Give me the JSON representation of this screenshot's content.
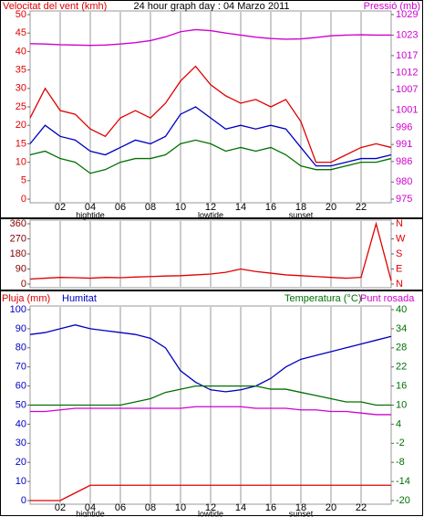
{
  "chart_data": [
    {
      "type": "line",
      "title": "24 hour graph day : 04 Marzo 2011",
      "ylabel": "Velocitat del vent (kmh)",
      "y2label": "Pressió (mb)",
      "ylabel_color": "#e00000",
      "y2label_color": "#d000d0",
      "x": [
        0,
        1,
        2,
        3,
        4,
        5,
        6,
        7,
        8,
        9,
        10,
        11,
        12,
        13,
        14,
        15,
        16,
        17,
        18,
        19,
        20,
        21,
        22,
        23,
        24
      ],
      "xlim": [
        0,
        24
      ],
      "xticks": [
        {
          "value": 2,
          "label": "02"
        },
        {
          "value": 4,
          "label": "04"
        },
        {
          "value": 6,
          "label": "06"
        },
        {
          "value": 8,
          "label": "08"
        },
        {
          "value": 10,
          "label": "10"
        },
        {
          "value": 12,
          "label": "12"
        },
        {
          "value": 14,
          "label": "14"
        },
        {
          "value": 16,
          "label": "16"
        },
        {
          "value": 18,
          "label": "18"
        },
        {
          "value": 20,
          "label": "20"
        },
        {
          "value": 22,
          "label": "22"
        }
      ],
      "annotations": [
        {
          "text": "hightide",
          "x": 4
        },
        {
          "text": "lowtide",
          "x": 12
        },
        {
          "text": "sunset",
          "x": 18
        }
      ],
      "ylim": [
        0,
        50
      ],
      "yticks": [
        0,
        5,
        10,
        15,
        20,
        25,
        30,
        35,
        40,
        45,
        50
      ],
      "ytick_color": "#e00000",
      "y2lim": [
        975,
        1029
      ],
      "y2ticks": [
        975,
        980,
        986,
        991,
        996,
        1001,
        1007,
        1012,
        1017,
        1023,
        1029
      ],
      "y2tick_color": "#d000d0",
      "grid": true,
      "series": [
        {
          "color": "#e00000",
          "values": [
            22,
            30,
            24,
            23,
            19,
            17,
            22,
            24,
            22,
            26,
            32,
            36,
            31,
            28,
            26,
            27,
            25,
            27,
            21,
            10,
            10,
            12,
            14,
            15,
            14
          ]
        },
        {
          "color": "#007000",
          "values": [
            12,
            13,
            11,
            10,
            7,
            8,
            10,
            11,
            11,
            12,
            15,
            16,
            15,
            13,
            14,
            13,
            14,
            12,
            9,
            8,
            8,
            9,
            10,
            10,
            11
          ]
        },
        {
          "color": "#0000c0",
          "values": [
            15,
            20,
            17,
            16,
            13,
            12,
            14,
            16,
            15,
            17,
            23,
            25,
            22,
            19,
            20,
            19,
            20,
            19,
            14,
            9,
            9,
            10,
            11,
            11,
            12
          ]
        },
        {
          "color": "#d000d0",
          "axis": "y2",
          "values": [
            1020.5,
            1020.4,
            1020.2,
            1020.1,
            1020.0,
            1020.1,
            1020.4,
            1020.8,
            1021.4,
            1022.5,
            1024.0,
            1024.6,
            1024.3,
            1023.6,
            1023.0,
            1022.4,
            1022.0,
            1021.8,
            1021.9,
            1022.3,
            1022.8,
            1023.0,
            1023.1,
            1023.0,
            1023.0
          ]
        }
      ]
    },
    {
      "type": "line",
      "x": [
        0,
        1,
        2,
        3,
        4,
        5,
        6,
        7,
        8,
        9,
        10,
        11,
        12,
        13,
        14,
        15,
        16,
        17,
        18,
        19,
        20,
        21,
        22,
        23,
        24
      ],
      "xlim": [
        0,
        24
      ],
      "ylim": [
        0,
        360
      ],
      "yticks": [
        0,
        90,
        180,
        270,
        360
      ],
      "ytick_color": "#800000",
      "y2lim": [
        0,
        360
      ],
      "y2ticks": [
        {
          "value": 0,
          "label": "N"
        },
        {
          "value": 90,
          "label": "E"
        },
        {
          "value": 180,
          "label": "S"
        },
        {
          "value": 270,
          "label": "W"
        },
        {
          "value": 360,
          "label": "N"
        }
      ],
      "y2tick_color": "#e00000",
      "grid": true,
      "series": [
        {
          "color": "#e00000",
          "values": [
            30,
            35,
            40,
            38,
            35,
            40,
            38,
            42,
            45,
            48,
            50,
            55,
            60,
            70,
            90,
            75,
            65,
            55,
            50,
            45,
            40,
            35,
            40,
            360,
            20
          ]
        }
      ]
    },
    {
      "type": "line",
      "x": [
        0,
        1,
        2,
        3,
        4,
        5,
        6,
        7,
        8,
        9,
        10,
        11,
        12,
        13,
        14,
        15,
        16,
        17,
        18,
        19,
        20,
        21,
        22,
        23,
        24
      ],
      "xlim": [
        0,
        24
      ],
      "xticks": [
        {
          "value": 2,
          "label": "02"
        },
        {
          "value": 4,
          "label": "04"
        },
        {
          "value": 6,
          "label": "06"
        },
        {
          "value": 8,
          "label": "08"
        },
        {
          "value": 10,
          "label": "10"
        },
        {
          "value": 12,
          "label": "12"
        },
        {
          "value": 14,
          "label": "14"
        },
        {
          "value": 16,
          "label": "16"
        },
        {
          "value": 18,
          "label": "18"
        },
        {
          "value": 20,
          "label": "20"
        },
        {
          "value": 22,
          "label": "22"
        }
      ],
      "annotations": [
        {
          "text": "hightide",
          "x": 4
        },
        {
          "text": "lowtide",
          "x": 12
        },
        {
          "text": "sunset",
          "x": 18
        }
      ],
      "ylim": [
        0,
        100
      ],
      "yticks": [
        0,
        10,
        20,
        30,
        40,
        50,
        60,
        70,
        80,
        90,
        100
      ],
      "ytick_color": "#0000c0",
      "y2lim": [
        -20,
        40
      ],
      "y2ticks": [
        -20,
        -14,
        -8,
        -2,
        4,
        10,
        16,
        22,
        28,
        34,
        40
      ],
      "y2tick_color": "#007000",
      "y3lim": [
        0,
        10
      ],
      "grid": true,
      "series": [
        {
          "name": "Pluja (mm)",
          "color": "#e00000",
          "axis": "y3",
          "values": [
            0,
            0,
            0,
            0.4,
            0.8,
            0.8,
            0.8,
            0.8,
            0.8,
            0.8,
            0.8,
            0.8,
            0.8,
            0.8,
            0.8,
            0.8,
            0.8,
            0.8,
            0.8,
            0.8,
            0.8,
            0.8,
            0.8,
            0.8,
            0.8
          ]
        },
        {
          "name": "Humitat",
          "color": "#0000c0",
          "values": [
            87,
            88,
            90,
            92,
            90,
            89,
            88,
            87,
            85,
            80,
            68,
            62,
            58,
            57,
            58,
            60,
            64,
            70,
            74,
            76,
            78,
            80,
            82,
            84,
            86
          ]
        },
        {
          "name": "Temperatura (°C)",
          "color": "#007000",
          "axis": "y2",
          "values": [
            10,
            10,
            10,
            10,
            10,
            10,
            10,
            11,
            12,
            14,
            15,
            16,
            16,
            16,
            16,
            16,
            15,
            15,
            14,
            13,
            12,
            11,
            11,
            10,
            10
          ]
        },
        {
          "name": "Punt rosada",
          "color": "#d000d0",
          "axis": "y2",
          "values": [
            8,
            8,
            8.5,
            9,
            9,
            9,
            9,
            9,
            9,
            9,
            9,
            9.5,
            9.5,
            9.5,
            9.5,
            9,
            9,
            9,
            8.5,
            8.5,
            8,
            8,
            7.5,
            7,
            7
          ]
        }
      ]
    }
  ]
}
